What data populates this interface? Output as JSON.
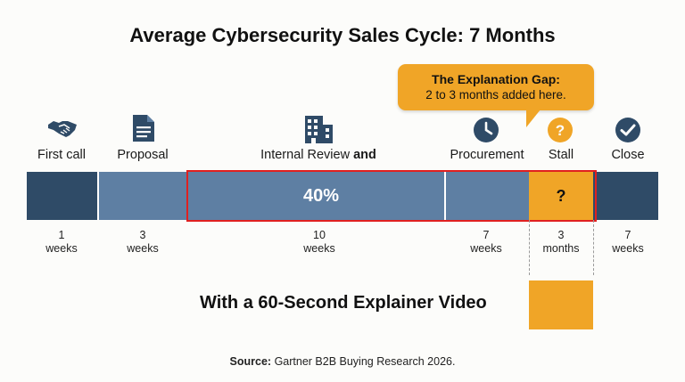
{
  "title": "Average Cybersecurity Sales Cycle: 7 Months",
  "callout": {
    "heading": "The Explanation Gap:",
    "text": "2 to 3 months added here."
  },
  "steps": [
    {
      "label": "First call",
      "icon": "handshake-icon",
      "duration_value": "1",
      "duration_unit": "weeks"
    },
    {
      "label": "Proposal",
      "icon": "document-icon",
      "duration_value": "3",
      "duration_unit": "weeks"
    },
    {
      "label": "Internal Review",
      "label_bold": "and",
      "icon": "building-icon",
      "duration_value": "10",
      "duration_unit": "weeks"
    },
    {
      "label": "Procurement",
      "icon": "clock-icon",
      "duration_value": "7",
      "duration_unit": "weeks"
    },
    {
      "label": "Stall",
      "icon": "question-icon",
      "duration_value": "3",
      "duration_unit": "months"
    },
    {
      "label": "Close",
      "icon": "checkmark-icon",
      "duration_value": "7",
      "duration_unit": "weeks"
    }
  ],
  "bar": {
    "highlight_percent": "40%",
    "stall_marker": "?"
  },
  "video_line": "With a 60-Second Explainer Video",
  "source": {
    "label": "Source:",
    "text": "Gartner B2B Buying Research 2026."
  },
  "colors": {
    "navy": "#2f4b67",
    "steel_blue": "#5e7fa3",
    "gold": "#f0a527",
    "highlight_red": "#e02020"
  }
}
